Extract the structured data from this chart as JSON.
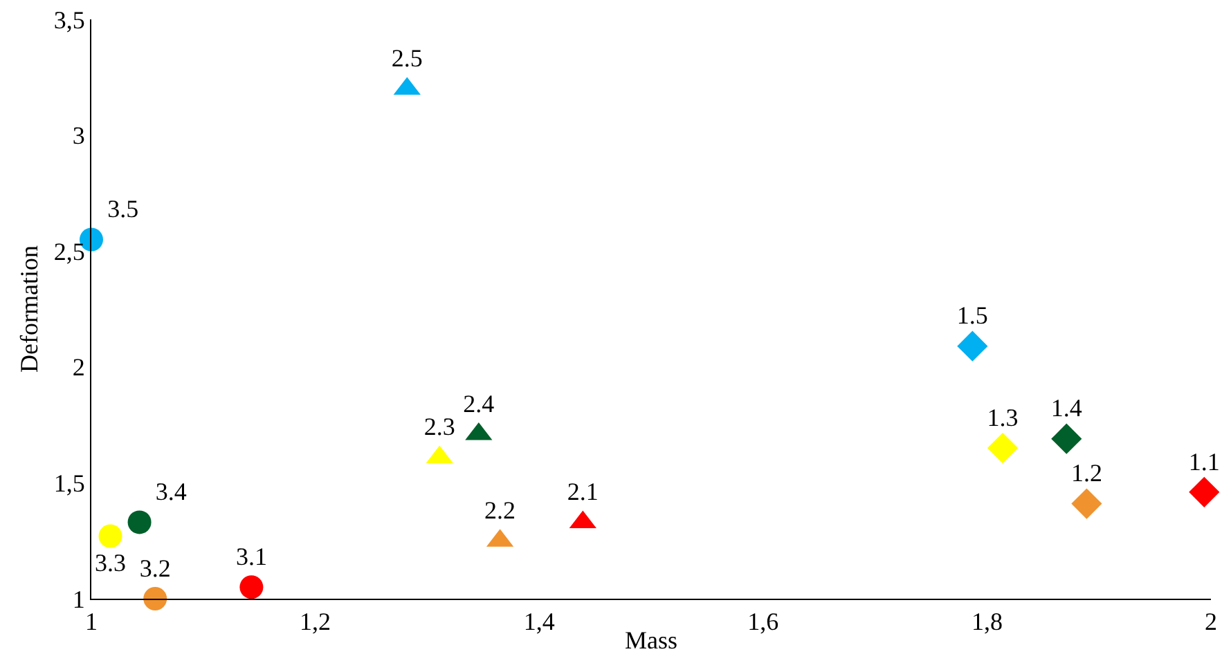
{
  "chart_data": {
    "type": "scatter",
    "xlabel": "Mass",
    "ylabel": "Deformation",
    "xlim": [
      1,
      2
    ],
    "ylim": [
      1,
      3.5
    ],
    "xticks": [
      1,
      {
        "value": 1.2,
        "label": "1,2"
      },
      {
        "value": 1.4,
        "label": "1,4"
      },
      {
        "value": 1.6,
        "label": "1,6"
      },
      {
        "value": 1.8,
        "label": "1,8"
      },
      2
    ],
    "yticks": [
      1,
      {
        "value": 1.5,
        "label": "1,5"
      },
      2,
      {
        "value": 2.5,
        "label": "2,5"
      },
      3,
      {
        "value": 3.5,
        "label": "3,5"
      }
    ],
    "grid": false,
    "legend": false,
    "series": [
      {
        "name": "3.5",
        "color": "#00b0f0",
        "marker": "circle",
        "x": [
          1.0
        ],
        "values": [
          2.55
        ]
      },
      {
        "name": "2.5",
        "color": "#00b0f0",
        "marker": "triangle",
        "x": [
          1.282
        ],
        "values": [
          3.2
        ]
      },
      {
        "name": "3.3",
        "color": "#ffff00",
        "marker": "circle",
        "x": [
          1.017
        ],
        "values": [
          1.27
        ]
      },
      {
        "name": "3.4",
        "color": "#005f2a",
        "marker": "circle",
        "x": [
          1.043
        ],
        "values": [
          1.33
        ]
      },
      {
        "name": "3.2",
        "color": "#f0922e",
        "marker": "circle",
        "x": [
          1.057
        ],
        "values": [
          1.0
        ]
      },
      {
        "name": "3.1",
        "color": "#ff0000",
        "marker": "circle",
        "x": [
          1.143
        ],
        "values": [
          1.05
        ]
      },
      {
        "name": "2.3",
        "color": "#ffff00",
        "marker": "triangle",
        "x": [
          1.311
        ],
        "values": [
          1.61
        ]
      },
      {
        "name": "2.4",
        "color": "#005f2a",
        "marker": "triangle",
        "x": [
          1.346
        ],
        "values": [
          1.71
        ]
      },
      {
        "name": "2.2",
        "color": "#f0922e",
        "marker": "triangle",
        "x": [
          1.365
        ],
        "values": [
          1.25
        ]
      },
      {
        "name": "2.1",
        "color": "#ff0000",
        "marker": "triangle",
        "x": [
          1.439
        ],
        "values": [
          1.33
        ]
      },
      {
        "name": "1.5",
        "color": "#00b0f0",
        "marker": "diamond",
        "x": [
          1.787
        ],
        "values": [
          2.09
        ]
      },
      {
        "name": "1.3",
        "color": "#ffff00",
        "marker": "diamond",
        "x": [
          1.814
        ],
        "values": [
          1.65
        ]
      },
      {
        "name": "1.4",
        "color": "#005f2a",
        "marker": "diamond",
        "x": [
          1.871
        ],
        "values": [
          1.69
        ]
      },
      {
        "name": "1.2",
        "color": "#f0922e",
        "marker": "diamond",
        "x": [
          1.889
        ],
        "values": [
          1.41
        ]
      },
      {
        "name": "1.1",
        "color": "#ff0000",
        "marker": "diamond",
        "x": [
          1.994
        ],
        "values": [
          1.46
        ]
      }
    ]
  }
}
